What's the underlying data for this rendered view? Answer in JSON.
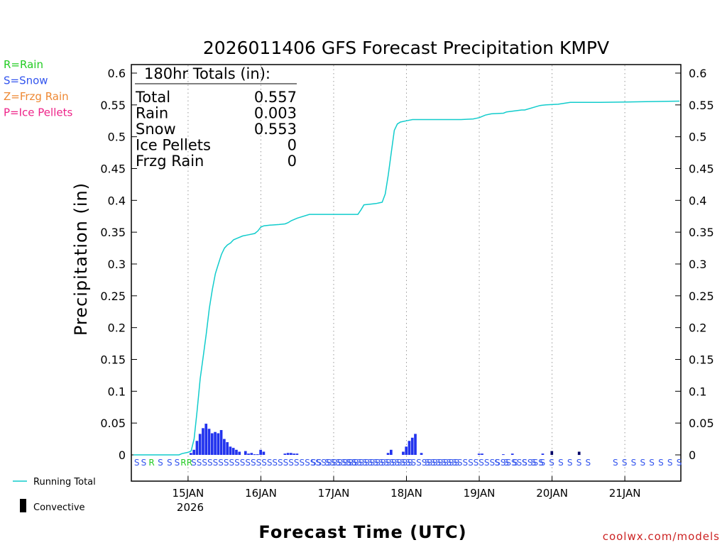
{
  "colors": {
    "rain": "#22cc22",
    "snow": "#3355ee",
    "frzg_rain": "#ee8833",
    "ice_pellets": "#ee2288",
    "running_total": "#11cccc",
    "bars": "#2233ee",
    "convective": "#000066",
    "credit": "#cc2222"
  },
  "chart_data": {
    "type": "bar",
    "title": "2026011406 GFS Forecast Precipitation KMPV",
    "xlabel": "Forecast Time (UTC)",
    "ylabel": "Precipitation (in)",
    "ylim": [
      0,
      0.6
    ],
    "xlim_hours": [
      6,
      186
    ],
    "yticks": [
      "0",
      "0.05",
      "0.1",
      "0.15",
      "0.2",
      "0.25",
      "0.3",
      "0.35",
      "0.4",
      "0.45",
      "0.5",
      "0.55",
      "0.6"
    ],
    "ytick_values": [
      0,
      0.05,
      0.1,
      0.15,
      0.2,
      0.25,
      0.3,
      0.35,
      0.4,
      0.45,
      0.5,
      0.55,
      0.6
    ],
    "xticks": [
      {
        "hour": 24,
        "label": "15JAN"
      },
      {
        "hour": 48,
        "label": "16JAN"
      },
      {
        "hour": 72,
        "label": "17JAN"
      },
      {
        "hour": 96,
        "label": "18JAN"
      },
      {
        "hour": 120,
        "label": "19JAN"
      },
      {
        "hour": 144,
        "label": "20JAN"
      },
      {
        "hour": 168,
        "label": "21JAN"
      }
    ],
    "year_label": "2026",
    "grid": "vertical dotted at day boundaries",
    "legend": [
      {
        "label": "R=Rain",
        "color": "#22cc22"
      },
      {
        "label": "S=Snow",
        "color": "#3355ee"
      },
      {
        "label": "Z=Frzg Rain",
        "color": "#ee8833"
      },
      {
        "label": "P=Ice Pellets",
        "color": "#ee2288"
      }
    ],
    "key_running_total": "Running Total",
    "key_convective": "Convective",
    "totals": {
      "heading": "180hr Totals (in):",
      "rows": [
        {
          "label": "Total",
          "value": "0.557"
        },
        {
          "label": "Rain",
          "value": "0.003"
        },
        {
          "label": "Snow",
          "value": "0.553"
        },
        {
          "label": "Ice Pellets",
          "value": "0"
        },
        {
          "label": "Frzg Rain",
          "value": "0"
        }
      ]
    },
    "running_total": {
      "x_hours": [
        6,
        21,
        22,
        24,
        25,
        26,
        27,
        28,
        29,
        30,
        31,
        32,
        33,
        34,
        35,
        36,
        37,
        38,
        39,
        40,
        42,
        44,
        46,
        47,
        48,
        49,
        51,
        54,
        56,
        57,
        58,
        60,
        64,
        68,
        72,
        76,
        80,
        81,
        82,
        84,
        86,
        87,
        88,
        89,
        90,
        91,
        92,
        93,
        94,
        96,
        98,
        100,
        103,
        106,
        110,
        114,
        118,
        119,
        120,
        122,
        124,
        128,
        129,
        134,
        135,
        140,
        142,
        146,
        150,
        160,
        175,
        186
      ],
      "y_values": [
        0,
        0,
        0.002,
        0.004,
        0.006,
        0.025,
        0.07,
        0.12,
        0.155,
        0.19,
        0.23,
        0.26,
        0.285,
        0.3,
        0.315,
        0.325,
        0.33,
        0.333,
        0.338,
        0.34,
        0.344,
        0.346,
        0.348,
        0.352,
        0.358,
        0.36,
        0.361,
        0.362,
        0.363,
        0.365,
        0.368,
        0.372,
        0.378,
        0.378,
        0.378,
        0.378,
        0.378,
        0.385,
        0.393,
        0.394,
        0.395,
        0.396,
        0.397,
        0.41,
        0.44,
        0.475,
        0.51,
        0.52,
        0.523,
        0.525,
        0.527,
        0.527,
        0.527,
        0.527,
        0.527,
        0.527,
        0.528,
        0.529,
        0.53,
        0.534,
        0.536,
        0.537,
        0.539,
        0.542,
        0.542,
        0.549,
        0.55,
        0.551,
        0.554,
        0.554,
        0.555,
        0.556
      ]
    },
    "bars": {
      "bar_width_hours": 1,
      "series": [
        {
          "name": "Precipitation",
          "x_hours": [
            25,
            26,
            27,
            28,
            29,
            30,
            31,
            32,
            33,
            34,
            35,
            36,
            37,
            38,
            39,
            40,
            41,
            43,
            44,
            45,
            46,
            47,
            48,
            49,
            56,
            57,
            58,
            59,
            60,
            90,
            91,
            95,
            96,
            97,
            98,
            99,
            101,
            120,
            121,
            128,
            131,
            141,
            153
          ],
          "values": [
            0.003,
            0.008,
            0.022,
            0.033,
            0.042,
            0.049,
            0.041,
            0.034,
            0.036,
            0.034,
            0.039,
            0.025,
            0.02,
            0.013,
            0.011,
            0.008,
            0.005,
            0.006,
            0.002,
            0.003,
            0.001,
            0.001,
            0.008,
            0.005,
            0.002,
            0.003,
            0.003,
            0.002,
            0.002,
            0.003,
            0.008,
            0.005,
            0.013,
            0.022,
            0.027,
            0.033,
            0.003,
            0.002,
            0.002,
            0.001,
            0.002,
            0.002,
            0.001
          ]
        },
        {
          "name": "Convective",
          "x_hours": [
            144,
            153
          ],
          "values": [
            0.006,
            0.005
          ]
        }
      ]
    },
    "ptype_labels": [
      {
        "hour": 6.2,
        "text": "S",
        "type": "S"
      },
      {
        "hour": 8.5,
        "text": "S",
        "type": "S"
      },
      {
        "hour": 11,
        "text": "R",
        "type": "R"
      },
      {
        "hour": 14,
        "text": "S",
        "type": "S"
      },
      {
        "hour": 17,
        "text": "S",
        "type": "S"
      },
      {
        "hour": 19.5,
        "text": "S",
        "type": "S"
      },
      {
        "hour": 21.5,
        "text": "R",
        "type": "R"
      },
      {
        "hour": 23.5,
        "text": "R",
        "type": "R"
      },
      {
        "hour": 25,
        "text": "SSSSSSSSSSSSSSSSSSSSSSSSSSSSSSSSSSSSSSSSS",
        "type": "S"
      },
      {
        "hour": 64.5,
        "text": "SS",
        "type": "S"
      },
      {
        "hour": 69,
        "text": "SSSSSS",
        "type": "S"
      },
      {
        "hour": 76,
        "text": "SSSSSSSSSSSSSSSSSSSSS",
        "type": "S"
      },
      {
        "hour": 102,
        "text": "SSSSSSSSSSSSSSSSSSSSSS",
        "type": "S"
      },
      {
        "hour": 125,
        "text": "S",
        "type": "S"
      },
      {
        "hour": 128,
        "text": "S",
        "type": "S"
      },
      {
        "hour": 131,
        "text": "S",
        "type": "S"
      },
      {
        "hour": 134,
        "text": "S",
        "type": "S"
      },
      {
        "hour": 137,
        "text": "S",
        "type": "S"
      },
      {
        "hour": 140,
        "text": "S",
        "type": "S"
      },
      {
        "hour": 143,
        "text": "S",
        "type": "S"
      },
      {
        "hour": 146,
        "text": "S",
        "type": "S"
      },
      {
        "hour": 149,
        "text": "S",
        "type": "S"
      },
      {
        "hour": 152,
        "text": "S",
        "type": "S"
      },
      {
        "hour": 155,
        "text": "S",
        "type": "S"
      },
      {
        "hour": 164,
        "text": "S",
        "type": "S"
      },
      {
        "hour": 167,
        "text": "S",
        "type": "S"
      },
      {
        "hour": 170,
        "text": "S",
        "type": "S"
      },
      {
        "hour": 173,
        "text": "S",
        "type": "S"
      },
      {
        "hour": 176,
        "text": "S",
        "type": "S"
      },
      {
        "hour": 179,
        "text": "S",
        "type": "S"
      },
      {
        "hour": 182,
        "text": "S",
        "type": "S"
      },
      {
        "hour": 185,
        "text": "S",
        "type": "S"
      }
    ],
    "credit": "coolwx.com/models"
  }
}
